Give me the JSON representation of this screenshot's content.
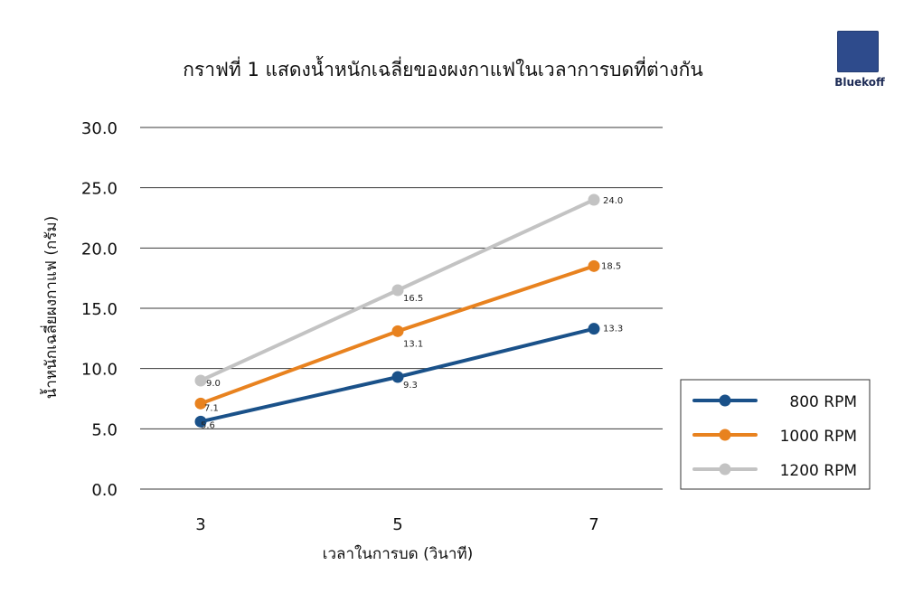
{
  "brand": {
    "name": "Bluekoff",
    "color": "#2e4b8c"
  },
  "chart_data": {
    "type": "line",
    "title": "กราฟที่ 1 แสดงน้ำหนักเฉลี่ยของผงกาแฟในเวลาการบดที่ต่างกัน",
    "xlabel": "เวลาในการบด (วินาที)",
    "ylabel": "น้ำหนักเฉลี่ยผงกาแฟ (กรัม)",
    "categories": [
      "3",
      "5",
      "7"
    ],
    "ylim": [
      0,
      30
    ],
    "yticks": [
      "0.0",
      "5.0",
      "10.0",
      "15.0",
      "20.0",
      "25.0",
      "30.0"
    ],
    "grid": true,
    "legend_position": "right",
    "series": [
      {
        "name": "800 RPM",
        "color": "#1a5189",
        "values": [
          5.6,
          9.3,
          13.3
        ],
        "labels": [
          "5.6",
          "9.3",
          "13.3"
        ]
      },
      {
        "name": "1000 RPM",
        "color": "#e8821f",
        "values": [
          7.1,
          13.1,
          18.5
        ],
        "labels": [
          "7.1",
          "13.1",
          "18.5"
        ]
      },
      {
        "name": "1200 RPM",
        "color": "#c3c3c3",
        "values": [
          9.0,
          16.5,
          24.0
        ],
        "labels": [
          "9.0",
          "16.5",
          "24.0"
        ]
      }
    ]
  }
}
